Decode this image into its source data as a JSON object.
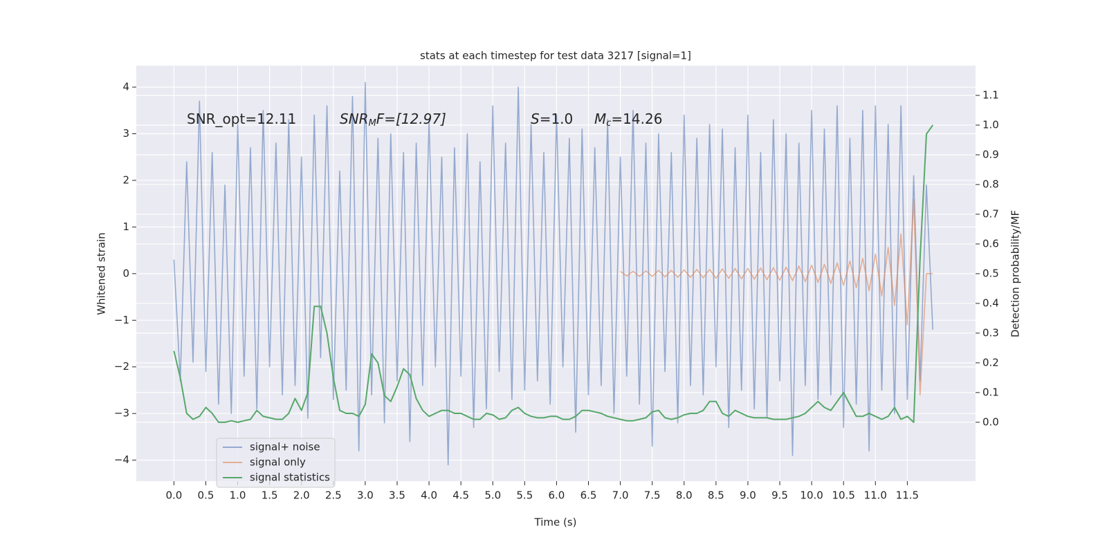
{
  "chart_data": {
    "type": "line",
    "title": "stats at each timestep for test data 3217 [signal=1]",
    "xlabel": "Time (s)",
    "ylabel": "Whitened strain",
    "y2label": "Detection probability/MF",
    "annotations": [
      {
        "parts": [
          "SNR_opt=12.11"
        ]
      },
      {
        "parts": [
          "SNR",
          "M",
          "F=[12.97]"
        ]
      },
      {
        "parts": [
          "S",
          "=1.0"
        ]
      },
      {
        "parts": [
          "M",
          "c",
          "=14.26"
        ]
      }
    ],
    "x": [
      0.0,
      0.1,
      0.2,
      0.3,
      0.4,
      0.5,
      0.6,
      0.7,
      0.8,
      0.9,
      1.0,
      1.1,
      1.2,
      1.3,
      1.4,
      1.5,
      1.6,
      1.7,
      1.8,
      1.9,
      2.0,
      2.1,
      2.2,
      2.3,
      2.4,
      2.5,
      2.6,
      2.7,
      2.8,
      2.9,
      3.0,
      3.1,
      3.2,
      3.3,
      3.4,
      3.5,
      3.6,
      3.7,
      3.8,
      3.9,
      4.0,
      4.1,
      4.2,
      4.3,
      4.4,
      4.5,
      4.6,
      4.7,
      4.8,
      4.9,
      5.0,
      5.1,
      5.2,
      5.3,
      5.4,
      5.5,
      5.6,
      5.7,
      5.8,
      5.9,
      6.0,
      6.1,
      6.2,
      6.3,
      6.4,
      6.5,
      6.6,
      6.7,
      6.8,
      6.9,
      7.0,
      7.1,
      7.2,
      7.3,
      7.4,
      7.5,
      7.6,
      7.7,
      7.8,
      7.9,
      8.0,
      8.1,
      8.2,
      8.3,
      8.4,
      8.5,
      8.6,
      8.7,
      8.8,
      8.9,
      9.0,
      9.1,
      9.2,
      9.3,
      9.4,
      9.5,
      9.6,
      9.7,
      9.8,
      9.9,
      10.0,
      10.1,
      10.2,
      10.3,
      10.4,
      10.5,
      10.6,
      10.7,
      10.8,
      10.9,
      11.0,
      11.1,
      11.2,
      11.3,
      11.4,
      11.5,
      11.6,
      11.7,
      11.8,
      11.9
    ],
    "series": [
      {
        "name": "signal+ noise",
        "color": "#4c72b0",
        "alpha": 0.55,
        "values": [
          0.3,
          -2.3,
          2.4,
          -1.9,
          3.7,
          -2.1,
          2.6,
          -2.8,
          1.9,
          -3.0,
          3.2,
          -2.2,
          2.7,
          -2.9,
          3.5,
          -2.0,
          2.8,
          -2.6,
          3.3,
          -2.4,
          2.5,
          -3.1,
          3.4,
          -1.8,
          3.6,
          -2.7,
          2.2,
          -2.5,
          3.8,
          -3.8,
          4.1,
          -2.6,
          2.9,
          -3.2,
          3.0,
          -2.3,
          2.6,
          -3.6,
          2.8,
          -2.4,
          3.3,
          -2.0,
          2.5,
          -4.1,
          2.7,
          -2.2,
          3.0,
          -3.3,
          2.4,
          -2.9,
          3.6,
          -2.1,
          2.8,
          -2.7,
          4.0,
          -2.5,
          3.2,
          -2.3,
          2.6,
          -2.8,
          3.4,
          -2.0,
          2.9,
          -3.4,
          3.1,
          -2.6,
          2.7,
          -2.4,
          3.3,
          -3.0,
          2.5,
          -2.2,
          3.5,
          -2.8,
          2.8,
          -3.7,
          3.0,
          -2.1,
          2.6,
          -3.2,
          3.4,
          -2.4,
          2.9,
          -2.6,
          3.2,
          -2.0,
          3.1,
          -3.3,
          2.7,
          -2.5,
          3.4,
          -2.9,
          2.6,
          -3.1,
          3.3,
          -2.3,
          3.0,
          -3.9,
          2.8,
          -2.4,
          3.5,
          -2.7,
          3.1,
          -2.6,
          3.6,
          -3.3,
          2.9,
          -2.8,
          3.5,
          -3.8,
          3.6,
          -2.5,
          3.2,
          -3.0,
          3.6,
          -2.7,
          2.1,
          -2.3,
          1.9,
          -1.2
        ]
      },
      {
        "name": "signal only",
        "color": "#dd8452",
        "alpha": 0.6,
        "values": [
          null,
          null,
          null,
          null,
          null,
          null,
          null,
          null,
          null,
          null,
          null,
          null,
          null,
          null,
          null,
          null,
          null,
          null,
          null,
          null,
          null,
          null,
          null,
          null,
          null,
          null,
          null,
          null,
          null,
          null,
          null,
          null,
          null,
          null,
          null,
          null,
          null,
          null,
          null,
          null,
          null,
          null,
          null,
          null,
          null,
          null,
          null,
          null,
          null,
          null,
          null,
          null,
          null,
          null,
          null,
          null,
          null,
          null,
          null,
          null,
          null,
          null,
          null,
          null,
          null,
          null,
          null,
          null,
          null,
          null,
          0.05,
          -0.05,
          0.05,
          -0.06,
          0.06,
          -0.06,
          0.07,
          -0.07,
          0.07,
          -0.08,
          0.08,
          -0.08,
          0.09,
          -0.09,
          0.09,
          -0.1,
          0.1,
          -0.1,
          0.11,
          -0.11,
          0.11,
          -0.12,
          0.12,
          -0.13,
          0.13,
          -0.14,
          0.14,
          -0.15,
          0.16,
          -0.17,
          0.18,
          -0.19,
          0.2,
          -0.21,
          0.23,
          -0.25,
          0.27,
          -0.3,
          0.33,
          -0.37,
          0.42,
          -0.48,
          0.56,
          -0.68,
          0.85,
          -1.1,
          1.6,
          -2.6,
          0,
          0
        ]
      },
      {
        "name": "signal statistics",
        "color": "#55a868",
        "alpha": 1,
        "axis": "y2",
        "values": [
          0.24,
          0.15,
          0.03,
          0.01,
          0.02,
          0.05,
          0.03,
          0.0,
          0.0,
          0.005,
          0.0,
          0.005,
          0.01,
          0.04,
          0.02,
          0.015,
          0.01,
          0.01,
          0.03,
          0.08,
          0.04,
          0.1,
          0.39,
          0.39,
          0.3,
          0.15,
          0.04,
          0.03,
          0.03,
          0.02,
          0.06,
          0.23,
          0.2,
          0.09,
          0.07,
          0.12,
          0.18,
          0.16,
          0.08,
          0.04,
          0.02,
          0.03,
          0.04,
          0.04,
          0.03,
          0.03,
          0.02,
          0.01,
          0.01,
          0.03,
          0.025,
          0.01,
          0.015,
          0.04,
          0.05,
          0.03,
          0.02,
          0.015,
          0.015,
          0.02,
          0.02,
          0.01,
          0.01,
          0.02,
          0.04,
          0.04,
          0.035,
          0.03,
          0.02,
          0.015,
          0.01,
          0.005,
          0.005,
          0.01,
          0.015,
          0.035,
          0.04,
          0.015,
          0.01,
          0.015,
          0.025,
          0.03,
          0.03,
          0.04,
          0.07,
          0.07,
          0.03,
          0.02,
          0.04,
          0.03,
          0.02,
          0.015,
          0.015,
          0.015,
          0.01,
          0.01,
          0.01,
          0.015,
          0.02,
          0.03,
          0.05,
          0.07,
          0.05,
          0.04,
          0.07,
          0.1,
          0.06,
          0.02,
          0.02,
          0.03,
          0.02,
          0.01,
          0.02,
          0.05,
          0.01,
          0.02,
          0.0,
          0.55,
          0.97,
          1.0
        ]
      }
    ],
    "xlim": [
      -0.59,
      12.57
    ],
    "xticks": [
      {
        "value": 0,
        "label": "0.0"
      },
      {
        "value": 0.5,
        "label": "0.5"
      },
      {
        "value": 1,
        "label": "1.0"
      },
      {
        "value": 1.5,
        "label": "1.5"
      },
      {
        "value": 2,
        "label": "2.0"
      },
      {
        "value": 2.5,
        "label": "2.5"
      },
      {
        "value": 3,
        "label": "3.0"
      },
      {
        "value": 3.5,
        "label": "3.5"
      },
      {
        "value": 4,
        "label": "4.0"
      },
      {
        "value": 4.5,
        "label": "4.5"
      },
      {
        "value": 5,
        "label": "5.0"
      },
      {
        "value": 5.5,
        "label": "5.5"
      },
      {
        "value": 6,
        "label": "6.0"
      },
      {
        "value": 6.5,
        "label": "6.5"
      },
      {
        "value": 7,
        "label": "7.0"
      },
      {
        "value": 7.5,
        "label": "7.5"
      },
      {
        "value": 8,
        "label": "8.0"
      },
      {
        "value": 8.5,
        "label": "8.5"
      },
      {
        "value": 9,
        "label": "9.0"
      },
      {
        "value": 9.5,
        "label": "9.5"
      },
      {
        "value": 10,
        "label": "10.0"
      },
      {
        "value": 10.5,
        "label": "10.5"
      },
      {
        "value": 11,
        "label": "11.0"
      },
      {
        "value": 11.5,
        "label": "11.5"
      }
    ],
    "ylim": [
      -4.45,
      4.46
    ],
    "yticks": [
      {
        "value": -4,
        "label": "−4"
      },
      {
        "value": -3,
        "label": "−3"
      },
      {
        "value": -2,
        "label": "−2"
      },
      {
        "value": -1,
        "label": "−1"
      },
      0,
      1,
      2,
      3,
      4
    ],
    "y2lim": [
      -0.198,
      1.2
    ],
    "y2ticks": [
      {
        "value": 0,
        "label": "0.0"
      },
      {
        "value": 0.1,
        "label": "0.1"
      },
      {
        "value": 0.2,
        "label": "0.2"
      },
      {
        "value": 0.3,
        "label": "0.3"
      },
      {
        "value": 0.4,
        "label": "0.4"
      },
      {
        "value": 0.5,
        "label": "0.5"
      },
      {
        "value": 0.6,
        "label": "0.6"
      },
      {
        "value": 0.7,
        "label": "0.7"
      },
      {
        "value": 0.8,
        "label": "0.8"
      },
      {
        "value": 0.9,
        "label": "0.9"
      },
      {
        "value": 1,
        "label": "1.0"
      },
      {
        "value": 1.1,
        "label": "1.1"
      }
    ],
    "grid": true,
    "legend": "lower left"
  }
}
